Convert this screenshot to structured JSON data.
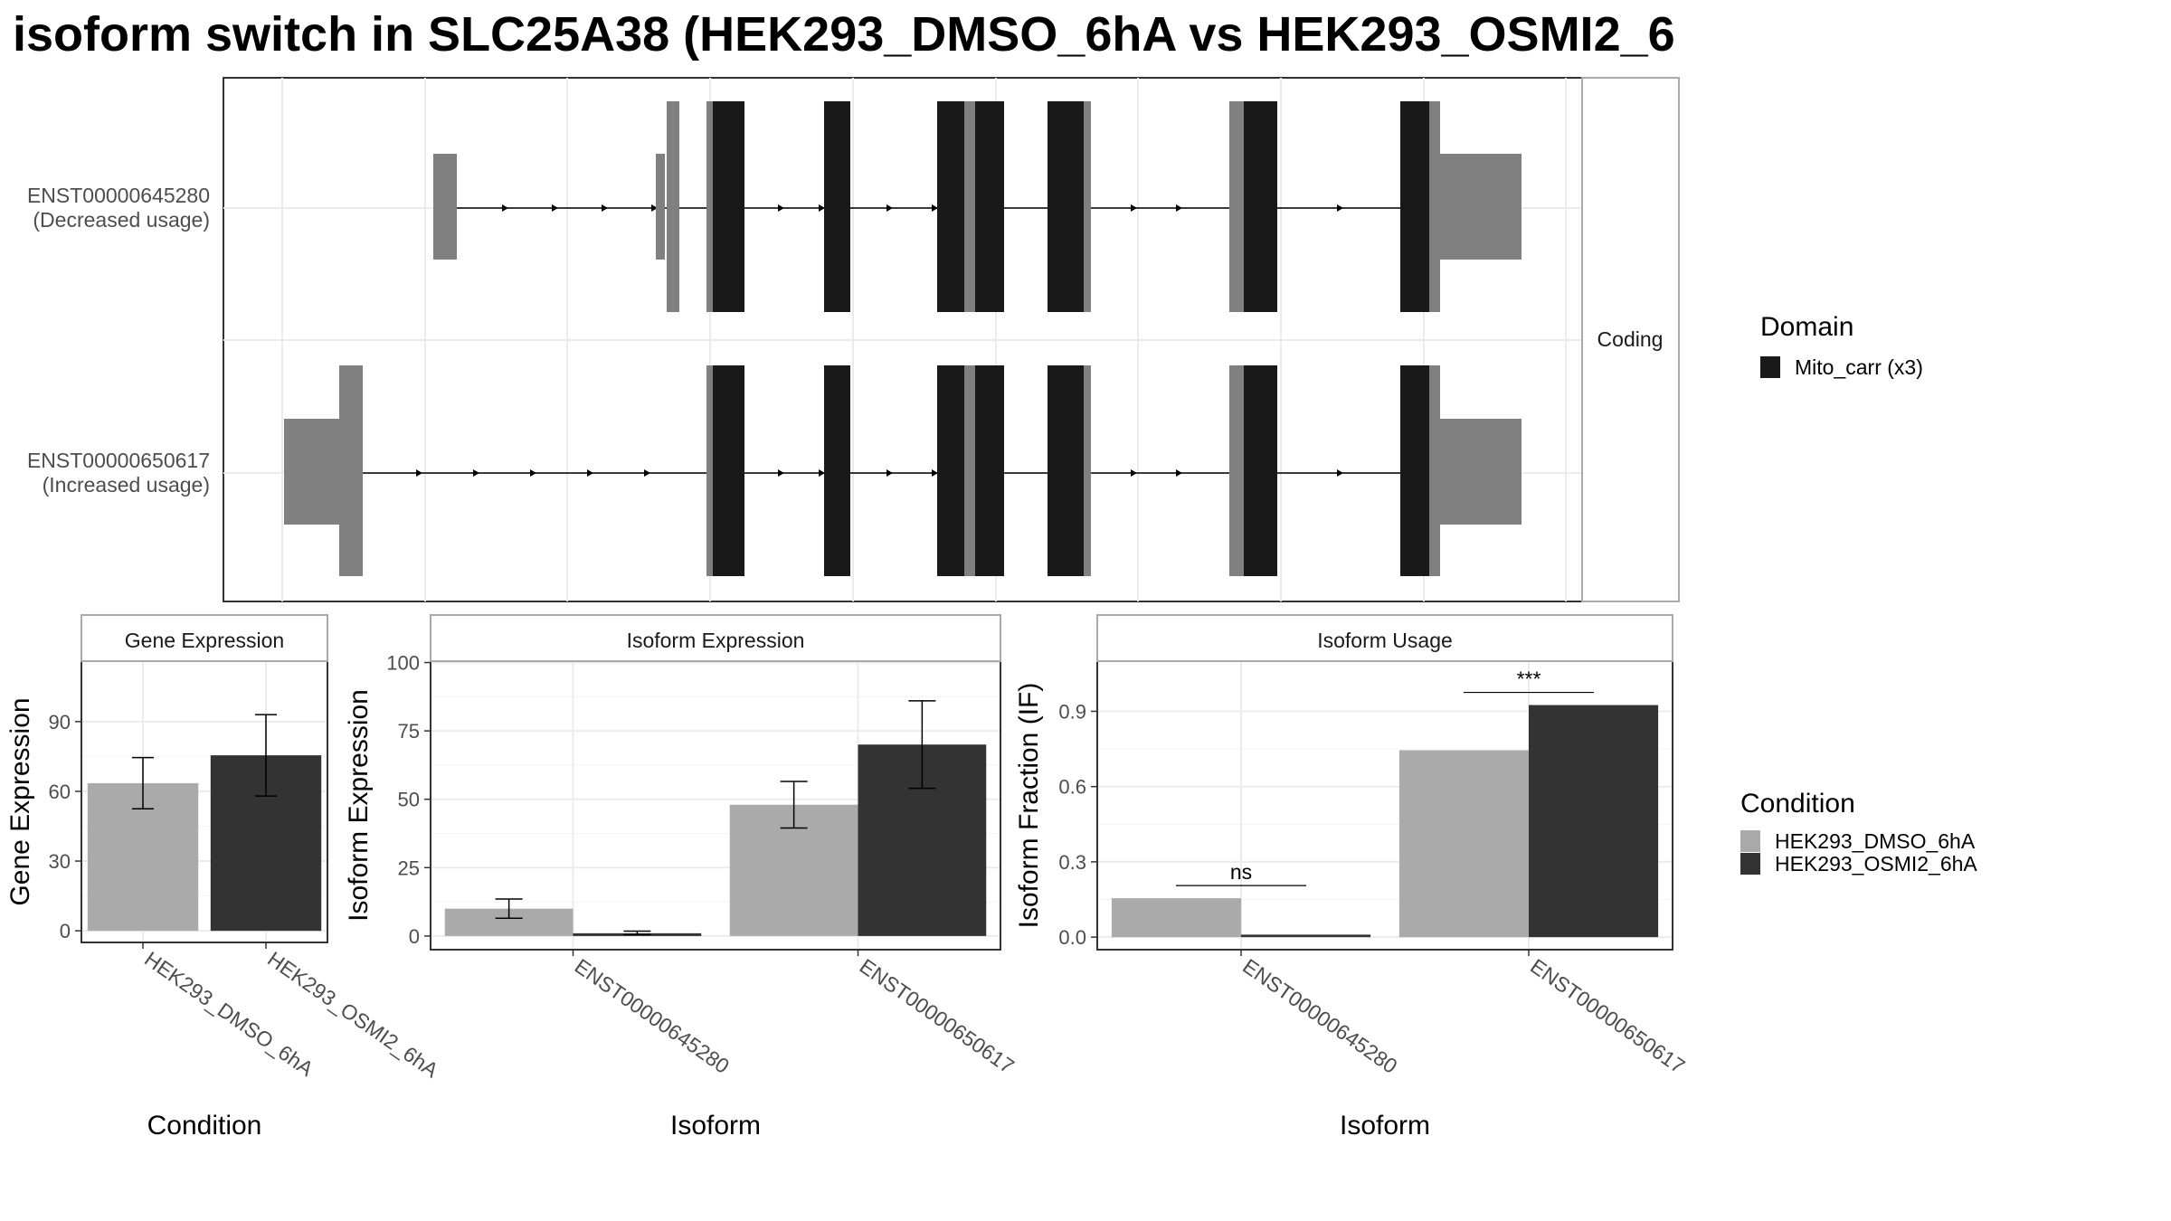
{
  "title": "isoform switch in SLC25A38 (HEK293_DMSO_6hA vs HEK293_OSMI2_6",
  "colors": {
    "domain": "#191919",
    "noncoding_exon": "#808080",
    "cond1": "#aaaaaa",
    "cond2": "#333333",
    "grid": "#ebebeb",
    "panel_border": "#333333",
    "strip_border": "#aaaaaa"
  },
  "structure": {
    "facet_label": "Coding",
    "transcripts": [
      {
        "id": "ENST00000645280",
        "label": "ENST00000645280",
        "sublabel": "(Decreased usage)"
      },
      {
        "id": "ENST00000650617",
        "label": "ENST00000650617",
        "sublabel": "(Increased usage)"
      }
    ],
    "legend_title": "Domain",
    "legend_items": [
      {
        "label": "Mito_carr (x3)",
        "color": "#191919"
      }
    ]
  },
  "condition_legend": {
    "title": "Condition",
    "items": [
      {
        "label": "HEK293_DMSO_6hA",
        "color": "#aaaaaa"
      },
      {
        "label": "HEK293_OSMI2_6hA",
        "color": "#333333"
      }
    ]
  },
  "chart_data": [
    {
      "type": "bar",
      "title": "Gene Expression",
      "xlabel": "Condition",
      "ylabel": "Gene Expression",
      "categories": [
        "HEK293_DMSO_6hA",
        "HEK293_OSMI2_6hA"
      ],
      "values": [
        63.5,
        75.5
      ],
      "err_low": [
        52.5,
        58
      ],
      "err_high": [
        74.5,
        93
      ],
      "ylim": [
        -5,
        116
      ],
      "yticks": [
        0,
        30,
        60,
        90
      ],
      "ytick_labels": [
        "0",
        "30",
        "60",
        "90"
      ],
      "grid": true
    },
    {
      "type": "bar",
      "title": "Isoform Expression",
      "xlabel": "Isoform",
      "ylabel": "Isoform Expression",
      "categories": [
        "ENST00000645280",
        "ENST00000650617"
      ],
      "series": [
        {
          "name": "HEK293_DMSO_6hA",
          "values": [
            10,
            48
          ],
          "err_low": [
            6.5,
            39.5
          ],
          "err_high": [
            13.5,
            56.5
          ]
        },
        {
          "name": "HEK293_OSMI2_6hA",
          "values": [
            1,
            70
          ],
          "err_low": [
            0.5,
            54
          ],
          "err_high": [
            1.8,
            86
          ]
        }
      ],
      "ylim": [
        -5,
        100.5
      ],
      "yticks": [
        0,
        25,
        50,
        75,
        100
      ],
      "ytick_labels": [
        "0",
        "25",
        "50",
        "75",
        "100"
      ],
      "grid": true
    },
    {
      "type": "bar",
      "title": "Isoform Usage",
      "xlabel": "Isoform",
      "ylabel": "Isoform Fraction (IF)",
      "categories": [
        "ENST00000645280",
        "ENST00000650617"
      ],
      "series": [
        {
          "name": "HEK293_DMSO_6hA",
          "values": [
            0.155,
            0.745
          ]
        },
        {
          "name": "HEK293_OSMI2_6hA",
          "values": [
            0.01,
            0.925
          ]
        }
      ],
      "significance": [
        "ns",
        "***"
      ],
      "ylim": [
        -0.05,
        1.1
      ],
      "yticks": [
        0,
        0.3,
        0.6,
        0.9
      ],
      "ytick_labels": [
        "0.0",
        "0.3",
        "0.6",
        "0.9"
      ],
      "grid": true
    }
  ]
}
